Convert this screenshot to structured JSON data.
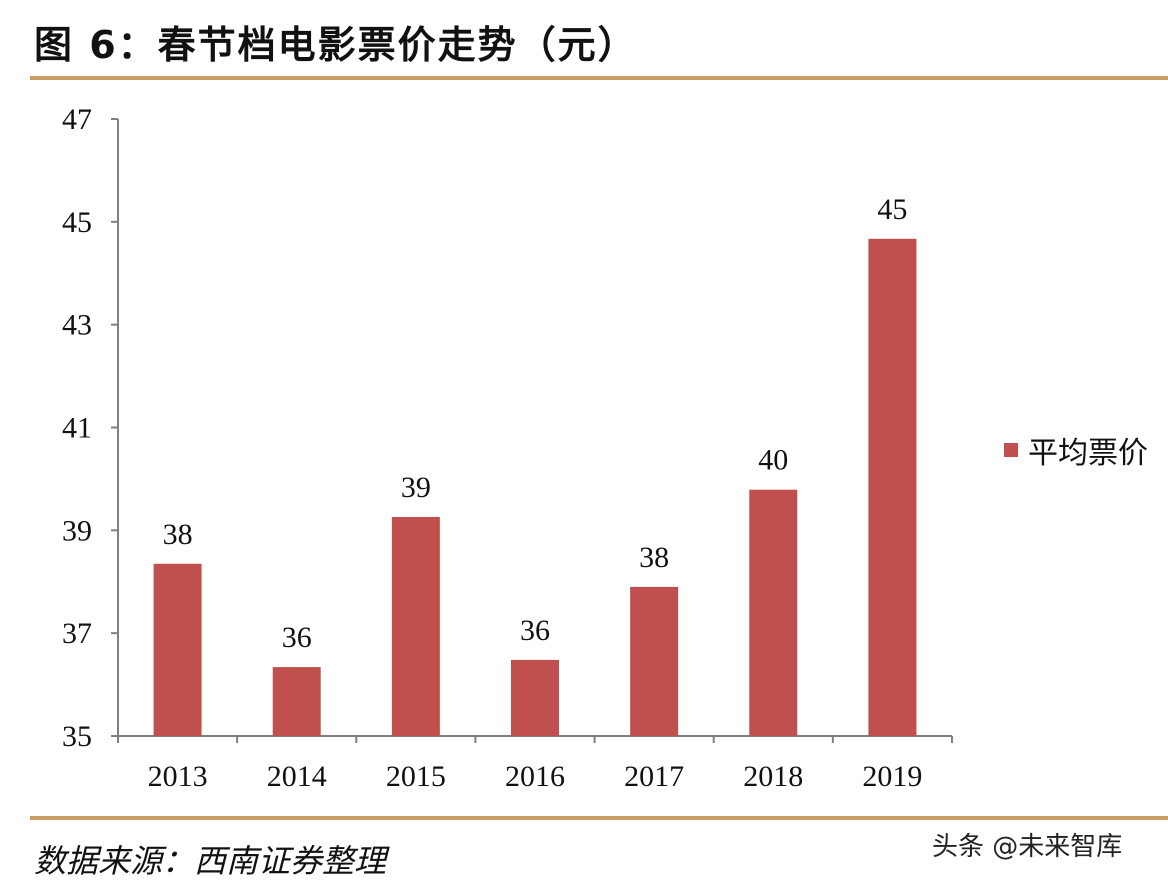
{
  "title": "图 6：春节档电影票价走势（元）",
  "source": "数据来源：西南证券整理",
  "watermark": "头条 @未来智库",
  "colors": {
    "bar": "#c0504d",
    "rule": "#c8a063",
    "axis": "#7f7f7f"
  },
  "chart_data": {
    "type": "bar",
    "title": "",
    "xlabel": "",
    "ylabel": "",
    "categories": [
      "2013",
      "2014",
      "2015",
      "2016",
      "2017",
      "2018",
      "2019"
    ],
    "series": [
      {
        "name": "平均票价",
        "values": [
          38.35,
          36.34,
          39.26,
          36.48,
          37.9,
          39.79,
          44.67
        ],
        "data_labels": [
          "38",
          "36",
          "39",
          "36",
          "38",
          "40",
          "45"
        ]
      }
    ],
    "ylim": [
      35,
      47
    ],
    "yticks": [
      "35",
      "37",
      "39",
      "41",
      "43",
      "45",
      "47"
    ],
    "grid": false,
    "legend": "right"
  }
}
